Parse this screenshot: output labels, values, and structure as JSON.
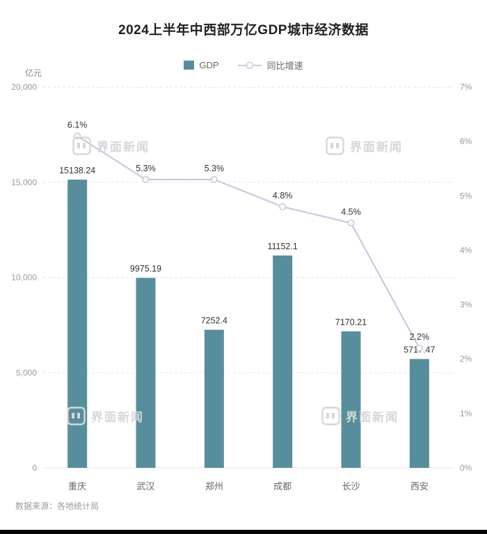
{
  "title": "2024上半年中西部万亿GDP城市经济数据",
  "unit_label": "亿元",
  "source": "数据来源：各地统计局",
  "watermark": "界面新闻",
  "legend": [
    {
      "label": "GDP",
      "type": "bar"
    },
    {
      "label": "同比增速",
      "type": "line"
    }
  ],
  "colors": {
    "bar": "#578e9d",
    "line": "#d3c4e3",
    "grid": "#e5e5e5",
    "axis_text": "#999999",
    "category_text": "#666666",
    "data_label": "#333333",
    "title": "#1f1f1f",
    "watermark": "#d7d7d7"
  },
  "chart_data": {
    "type": "bar+line",
    "categories": [
      "重庆",
      "武汉",
      "郑州",
      "成都",
      "长沙",
      "西安"
    ],
    "series": [
      {
        "name": "GDP",
        "type": "bar",
        "axis": "left",
        "values": [
          15138.24,
          9975.19,
          7252.4,
          11152.1,
          7170.21,
          5717.47
        ]
      },
      {
        "name": "同比增速",
        "type": "line",
        "axis": "right",
        "unit": "%",
        "values": [
          6.1,
          5.3,
          5.3,
          4.8,
          4.5,
          2.2
        ]
      }
    ],
    "left_axis": {
      "min": 0,
      "max": 20000,
      "step": 5000,
      "label": "亿元",
      "tick_format": "thousands"
    },
    "right_axis": {
      "min": 0,
      "max": 7,
      "step": 1,
      "suffix": "%"
    },
    "grid": true,
    "legend_position": "top"
  }
}
